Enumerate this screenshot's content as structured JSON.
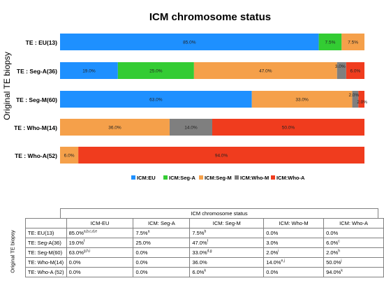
{
  "chart_data": {
    "type": "bar",
    "orientation": "horizontal",
    "stacked": true,
    "title": "ICM chromosome status",
    "ylabel": "Original TE biopsy",
    "categories": [
      "TE : EU(13)",
      "TE : Seg-A(36)",
      "TE : Seg-M(60)",
      "TE : Who-M(14)",
      "TE : Who-A(52)"
    ],
    "series": [
      {
        "name": "ICM:EU",
        "color": "#1e90ff",
        "values": [
          85.0,
          19.0,
          63.0,
          0,
          0
        ],
        "labels": [
          "85.0%",
          "19.0%",
          "63.0%",
          "",
          ""
        ]
      },
      {
        "name": "ICM:Seg-A",
        "color": "#33cc33",
        "values": [
          7.5,
          25.0,
          0,
          0,
          0
        ],
        "labels": [
          "7.5%",
          "25.0%",
          "",
          "",
          ""
        ]
      },
      {
        "name": "ICM:Seg-M",
        "color": "#f5a04a",
        "values": [
          7.5,
          47.0,
          33.0,
          36.0,
          6.0
        ],
        "labels": [
          "7.5%",
          "47.0%",
          "33.0%",
          "36.0%",
          "6.0%"
        ]
      },
      {
        "name": "ICM:Who-M",
        "color": "#7f7f7f",
        "values": [
          0,
          3.0,
          2.0,
          14.0,
          0
        ],
        "labels": [
          "",
          "3.0%",
          "2.0%",
          "14.0%",
          ""
        ]
      },
      {
        "name": "ICM:Who-A",
        "color": "#f03c1e",
        "values": [
          0,
          6.0,
          2.0,
          50.0,
          94.0
        ],
        "labels": [
          "",
          "6.0%",
          "2.0%",
          "50.0%",
          "94.0%"
        ]
      }
    ],
    "xlim": [
      0,
      100
    ],
    "grid": false,
    "legend_position": "bottom"
  },
  "table": {
    "title": "ICM  chromosome status",
    "side_label": "Original TE biopsy",
    "columns": [
      "ICM-EU",
      "ICM: Seg-A",
      "ICM: Seg-M",
      "ICM: Who-M",
      "ICM: Who-A"
    ],
    "rows": [
      {
        "label": "TE: EU(13)",
        "cells": [
          {
            "v": "85.0%",
            "s": "a,b,c,d,e"
          },
          {
            "v": "7.5%",
            "s": "a"
          },
          {
            "v": "7.5%",
            "s": "b"
          },
          {
            "v": "0.0%",
            "s": ""
          },
          {
            "v": "0.0%",
            "s": ""
          }
        ]
      },
      {
        "label": "TE: Seg-A(36)",
        "cells": [
          {
            "v": "19.0%",
            "s": "f"
          },
          {
            "v": "25.0%",
            "s": ""
          },
          {
            "v": "47.0%",
            "s": "f"
          },
          {
            "v": "3.0%",
            "s": ""
          },
          {
            "v": "6.0%",
            "s": "c"
          }
        ]
      },
      {
        "label": "TE: Seg-M(60)",
        "cells": [
          {
            "v": "63.0%",
            "s": "g,h,i"
          },
          {
            "v": "0.0%",
            "s": ""
          },
          {
            "v": "33.0%",
            "s": "d,g"
          },
          {
            "v": "2.0%",
            "s": "i"
          },
          {
            "v": "2.0%",
            "s": "h"
          }
        ]
      },
      {
        "label": "TE: Who-M(14)",
        "cells": [
          {
            "v": "0.0%",
            "s": ""
          },
          {
            "v": "0.0%",
            "s": ""
          },
          {
            "v": "36.0%",
            "s": ""
          },
          {
            "v": "14.0%",
            "s": "e,j"
          },
          {
            "v": "50.0%",
            "s": "j"
          }
        ]
      },
      {
        "label": "TE: Who-A (52)",
        "cells": [
          {
            "v": "0.0%",
            "s": ""
          },
          {
            "v": "0.0%",
            "s": ""
          },
          {
            "v": "6.0%",
            "s": "k"
          },
          {
            "v": "0.0%",
            "s": ""
          },
          {
            "v": "94.0%",
            "s": "k"
          }
        ]
      }
    ]
  }
}
